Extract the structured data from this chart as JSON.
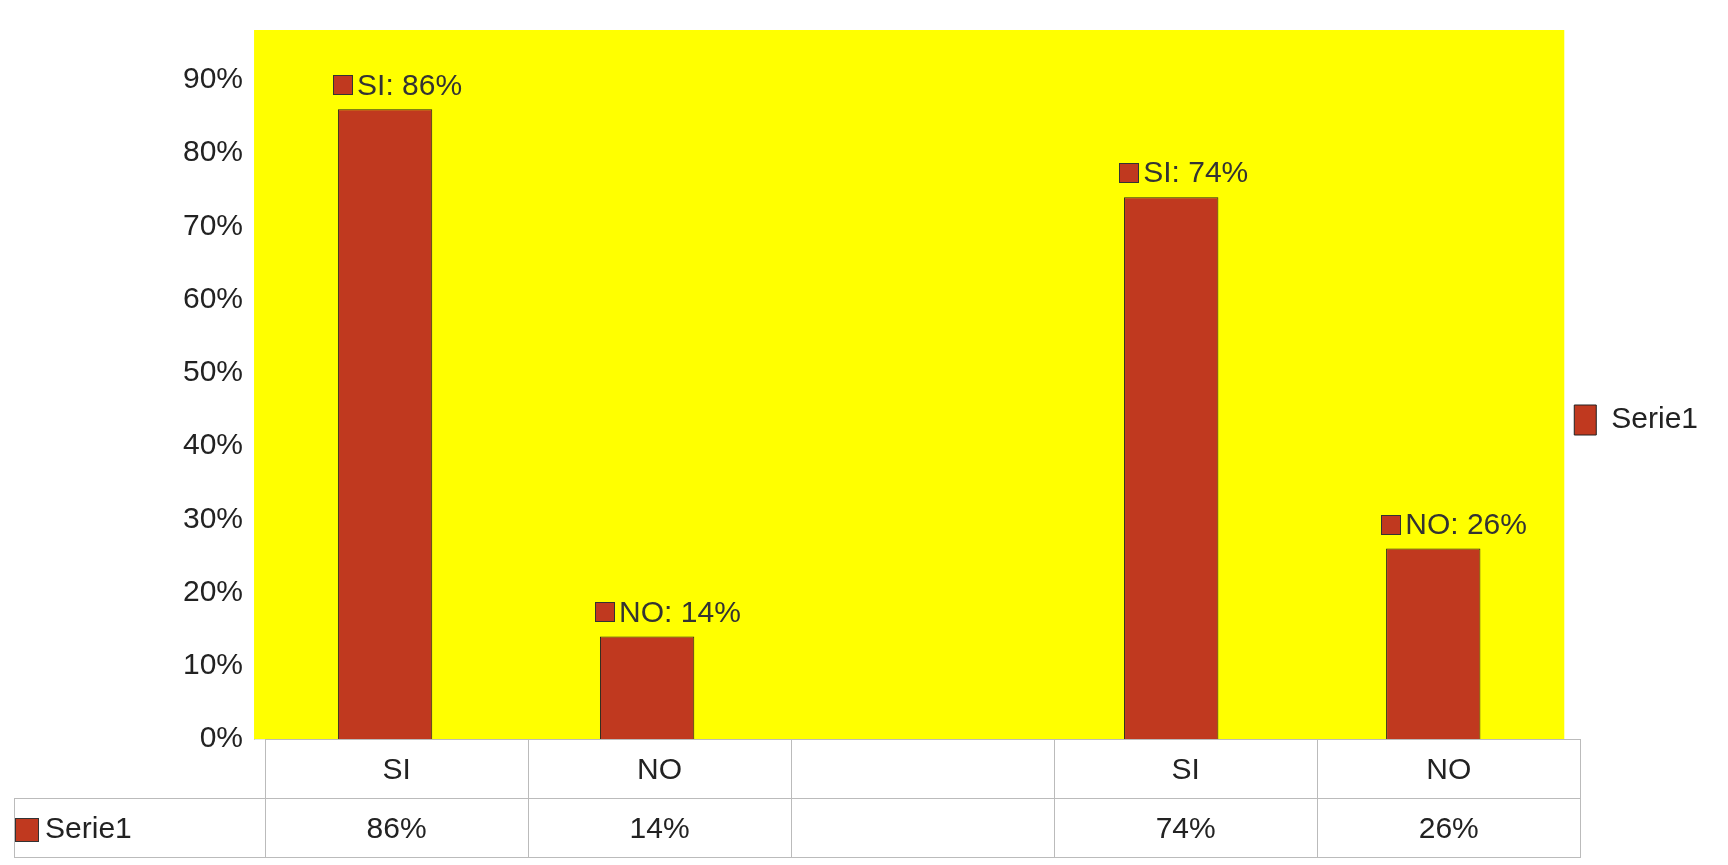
{
  "chart_data": {
    "type": "bar",
    "categories": [
      "SI",
      "NO",
      null,
      "SI",
      "NO"
    ],
    "series": [
      {
        "name": "Serie1",
        "color": "#c0391f",
        "values": [
          86,
          14,
          null,
          74,
          26
        ],
        "value_labels": [
          "SI: 86%",
          "NO: 14%",
          null,
          "SI: 74%",
          "NO: 26%"
        ]
      }
    ],
    "ylim": [
      0,
      90
    ],
    "yticks": [
      {
        "value": 0,
        "label": "0%"
      },
      {
        "value": 10,
        "label": "10%"
      },
      {
        "value": 20,
        "label": "20%"
      },
      {
        "value": 30,
        "label": "30%"
      },
      {
        "value": 40,
        "label": "40%"
      },
      {
        "value": 50,
        "label": "50%"
      },
      {
        "value": 60,
        "label": "60%"
      },
      {
        "value": 70,
        "label": "70%"
      },
      {
        "value": 80,
        "label": "80%"
      },
      {
        "value": 90,
        "label": "90%"
      }
    ],
    "annotations": [
      "86%",
      "14%",
      "74%",
      "26%"
    ],
    "grid": false,
    "legend": "right"
  }
}
